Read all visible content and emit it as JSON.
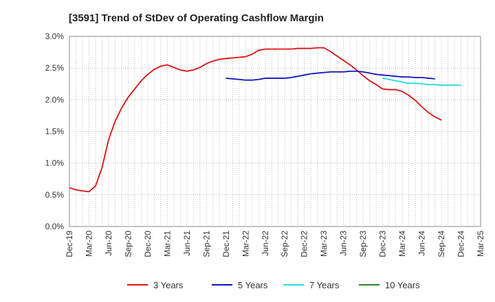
{
  "chart_data": {
    "type": "line",
    "title": "[3591]  Trend of StDev of Operating Cashflow Margin",
    "xlabel": "",
    "ylabel": "",
    "ylim": [
      0,
      3.0
    ],
    "yticks": [
      0,
      0.5,
      1.0,
      1.5,
      2.0,
      2.5,
      3.0
    ],
    "ytick_labels": [
      "0.0%",
      "0.5%",
      "1.0%",
      "1.5%",
      "2.0%",
      "2.5%",
      "3.0%"
    ],
    "x_start": "Dec-19",
    "x_tick_labels": [
      "Dec-19",
      "Mar-20",
      "Jun-20",
      "Sep-20",
      "Dec-20",
      "Mar-21",
      "Jun-21",
      "Sep-21",
      "Dec-21",
      "Mar-22",
      "Jun-22",
      "Sep-22",
      "Dec-22",
      "Mar-23",
      "Jun-23",
      "Sep-23",
      "Dec-23",
      "Mar-24",
      "Jun-24",
      "Sep-24",
      "Dec-24",
      "Mar-25"
    ],
    "grid": true,
    "legend_position": "bottom",
    "series": [
      {
        "name": "3 Years",
        "color": "#dd1111",
        "start": "Dec-19",
        "values": [
          0.61,
          0.58,
          0.56,
          0.55,
          0.64,
          0.93,
          1.37,
          1.66,
          1.87,
          2.04,
          2.17,
          2.3,
          2.4,
          2.48,
          2.53,
          2.55,
          2.51,
          2.47,
          2.45,
          2.47,
          2.51,
          2.57,
          2.61,
          2.64,
          2.65,
          2.66,
          2.67,
          2.68,
          2.72,
          2.78,
          2.8,
          2.8,
          2.8,
          2.8,
          2.8,
          2.81,
          2.81,
          2.81,
          2.82,
          2.82,
          2.76,
          2.69,
          2.62,
          2.55,
          2.47,
          2.38,
          2.3,
          2.24,
          2.17,
          2.16,
          2.16,
          2.13,
          2.07,
          1.99,
          1.89,
          1.8,
          1.73,
          1.68
        ]
      },
      {
        "name": "5 Years",
        "color": "#1111bb",
        "start": "Dec-21",
        "values": [
          2.34,
          2.33,
          2.32,
          2.31,
          2.31,
          2.32,
          2.34,
          2.34,
          2.34,
          2.34,
          2.35,
          2.37,
          2.39,
          2.41,
          2.42,
          2.43,
          2.44,
          2.44,
          2.44,
          2.45,
          2.45,
          2.44,
          2.42,
          2.4,
          2.39,
          2.38,
          2.37,
          2.36,
          2.36,
          2.35,
          2.35,
          2.34,
          2.33
        ]
      },
      {
        "name": "7 Years",
        "color": "#22dddd",
        "start": "Dec-23",
        "values": [
          2.34,
          2.32,
          2.3,
          2.28,
          2.26,
          2.26,
          2.25,
          2.24,
          2.24,
          2.23,
          2.23,
          2.23,
          2.23
        ]
      },
      {
        "name": "10 Years",
        "color": "#228822",
        "start": "Dec-24",
        "values": []
      }
    ]
  }
}
